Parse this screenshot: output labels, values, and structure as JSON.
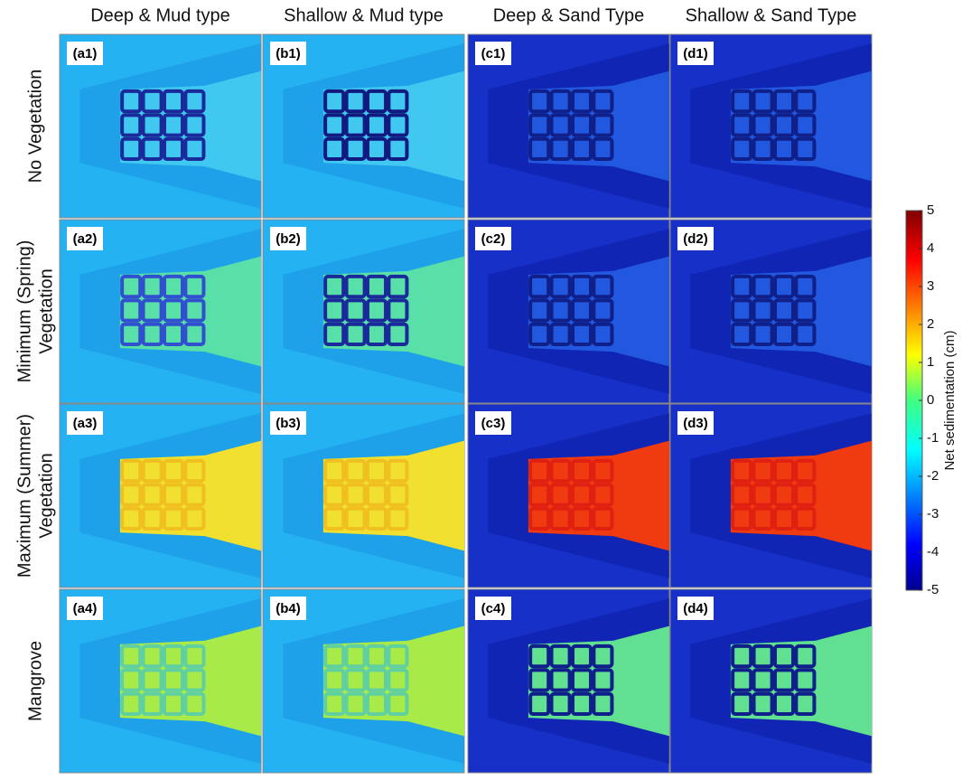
{
  "columns": [
    "Deep & Mud type",
    "Shallow & Mud type",
    "Deep & Sand Type",
    "Shallow & Sand Type"
  ],
  "rows": [
    [
      "No Vegetation"
    ],
    [
      "Minimum (Spring)",
      "Vegetation"
    ],
    [
      "Maximum (Summer)",
      "Vegetation"
    ],
    [
      "Mangrove"
    ]
  ],
  "panels": [
    [
      "(a1)",
      "(b1)",
      "(c1)",
      "(d1)"
    ],
    [
      "(a2)",
      "(b2)",
      "(c2)",
      "(d2)"
    ],
    [
      "(a3)",
      "(b3)",
      "(c3)",
      "(d3)"
    ],
    [
      "(a4)",
      "(b4)",
      "(c4)",
      "(d4)"
    ]
  ],
  "colorbar": {
    "label": "Net sedimentation (cm)",
    "lim": [
      -5,
      5
    ],
    "ticks": [
      -5,
      -4,
      -3,
      -2,
      -1,
      0,
      1,
      2,
      3,
      4,
      5
    ]
  }
}
